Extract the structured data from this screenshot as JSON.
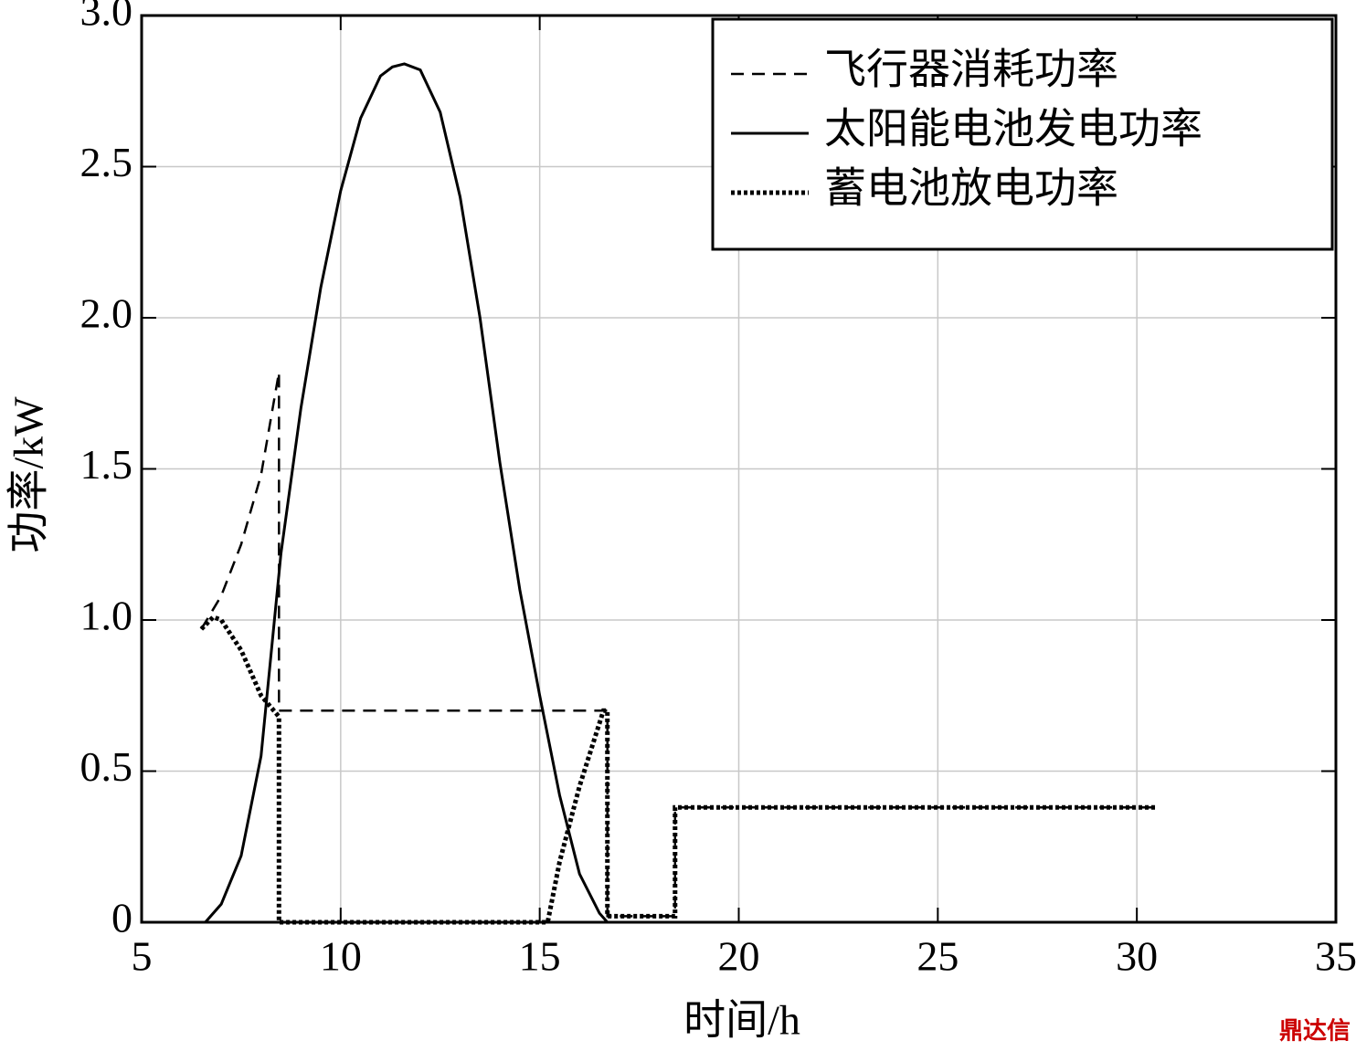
{
  "chart_data": {
    "type": "line",
    "xlabel": "时间/h",
    "ylabel": "功率/kW",
    "xlim": [
      5,
      35
    ],
    "ylim": [
      0,
      3
    ],
    "xticks": [
      5,
      10,
      15,
      20,
      25,
      30,
      35
    ],
    "yticks": [
      0,
      0.5,
      {
        "value": 1,
        "label": "1.0"
      },
      1.5,
      {
        "value": 2,
        "label": "2.0"
      },
      2.5,
      {
        "value": 3,
        "label": "3.0"
      }
    ],
    "grid": true,
    "legend": "upper right",
    "series": [
      {
        "name": "飞行器消耗功率",
        "color": "#000000",
        "style": "dashed",
        "x": [
          6.5,
          7,
          7.5,
          8,
          8.45,
          8.45,
          16.7,
          16.7,
          18.4,
          18.4,
          30.5
        ],
        "values": [
          0.97,
          1.08,
          1.25,
          1.48,
          1.82,
          0.7,
          0.7,
          0.02,
          0.02,
          0.38,
          0.38
        ]
      },
      {
        "name": "太阳能电池发电功率",
        "color": "#000000",
        "style": "solid",
        "x": [
          6.6,
          7,
          7.5,
          8,
          8.5,
          9,
          9.5,
          10,
          10.5,
          11,
          11.3,
          11.6,
          12,
          12.5,
          13,
          13.5,
          14,
          14.5,
          15,
          15.5,
          16,
          16.5,
          16.7
        ],
        "values": [
          0,
          0.06,
          0.22,
          0.55,
          1.22,
          1.7,
          2.1,
          2.42,
          2.66,
          2.8,
          2.83,
          2.84,
          2.82,
          2.68,
          2.4,
          2.0,
          1.52,
          1.1,
          0.75,
          0.42,
          0.16,
          0.03,
          0
        ]
      },
      {
        "name": "蓄电池放电功率",
        "color": "#000000",
        "style": "dotted",
        "x": [
          6.5,
          6.8,
          7,
          7.5,
          8,
          8.45,
          8.45,
          15.2,
          15.5,
          16,
          16.6,
          16.7,
          16.7,
          18.4,
          18.4,
          30.5
        ],
        "values": [
          0.97,
          1.01,
          1.0,
          0.9,
          0.75,
          0.68,
          0,
          0,
          0.2,
          0.45,
          0.7,
          0.7,
          0.02,
          0.02,
          0.38,
          0.38
        ]
      }
    ],
    "watermark": "鼎达信"
  }
}
